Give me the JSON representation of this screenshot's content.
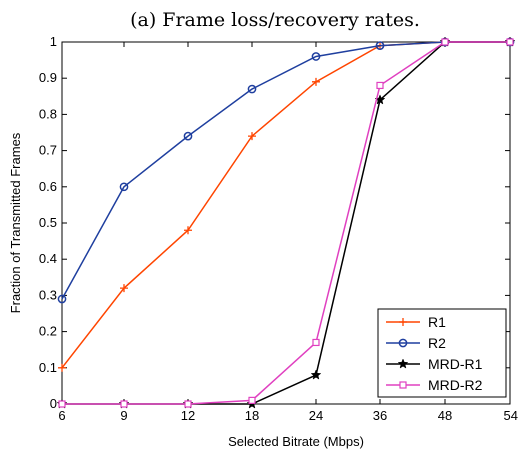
{
  "chart_data": {
    "type": "line",
    "title": "(a) Frame loss/recovery rates.",
    "xlabel": "Selected Bitrate (Mbps)",
    "ylabel": "Fraction of Transmitted Frames",
    "x_tick_labels": [
      "6",
      "9",
      "12",
      "18",
      "24",
      "36",
      "48",
      "54"
    ],
    "y_tick_labels": [
      "0",
      "0.1",
      "0.2",
      "0.3",
      "0.4",
      "0.5",
      "0.6",
      "0.7",
      "0.8",
      "0.9",
      "1"
    ],
    "ylim": [
      0,
      1
    ],
    "x_scale": "categorical",
    "grid": false,
    "legend_position": "bottom-right",
    "series": [
      {
        "name": "R1",
        "color": "#ff4500",
        "marker": "plus",
        "values": [
          0.1,
          0.32,
          0.48,
          0.74,
          0.89,
          0.99,
          1.0,
          1.0
        ]
      },
      {
        "name": "R2",
        "color": "#1f3f9f",
        "marker": "circle",
        "values": [
          0.29,
          0.6,
          0.74,
          0.87,
          0.96,
          0.99,
          1.0,
          1.0
        ]
      },
      {
        "name": "MRD-R1",
        "color": "#000000",
        "marker": "star",
        "values": [
          0.0,
          0.0,
          0.0,
          0.0,
          0.08,
          0.84,
          1.0,
          1.0
        ]
      },
      {
        "name": "MRD-R2",
        "color": "#e040c0",
        "marker": "square",
        "values": [
          0.0,
          0.0,
          0.0,
          0.01,
          0.17,
          0.88,
          1.0,
          1.0
        ]
      }
    ]
  }
}
